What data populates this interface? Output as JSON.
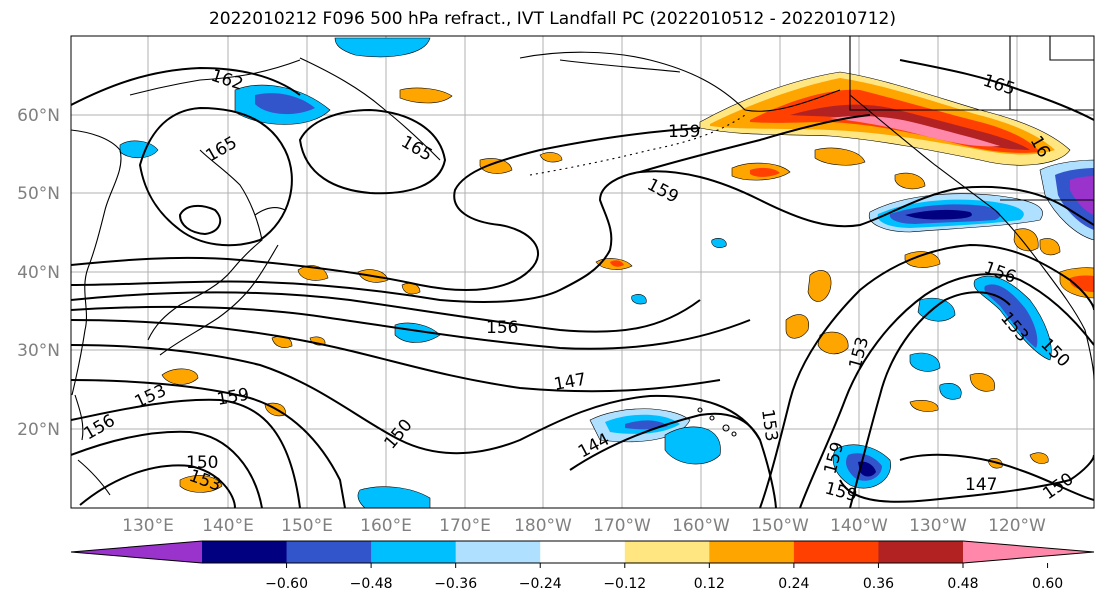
{
  "title": "2022010212 F096 500 hPa refract., IVT Landfall PC (2022010512 - 2022010712)",
  "lat_ticks": [
    "60°N",
    "50°N",
    "40°N",
    "30°N",
    "20°N"
  ],
  "lon_ticks": [
    "130°E",
    "140°E",
    "150°E",
    "160°E",
    "170°E",
    "180°W",
    "170°W",
    "160°W",
    "150°W",
    "140°W",
    "130°W",
    "120°W"
  ],
  "colorbar": {
    "colors": [
      "#9933cc",
      "#000080",
      "#3355cc",
      "#00bfff",
      "#b0e0ff",
      "#ffffff",
      "#ffe680",
      "#ffa500",
      "#ff4000",
      "#b22222",
      "#ff88aa"
    ],
    "ticks": [
      "−0.60",
      "−0.48",
      "−0.36",
      "−0.24",
      "−0.12",
      "0.12",
      "0.24",
      "0.36",
      "0.48",
      "0.60"
    ]
  },
  "contour_labels": [
    "162",
    "165",
    "165",
    "159",
    "159",
    "156",
    "165",
    "16",
    "156",
    "153",
    "147",
    "153",
    "159",
    "156",
    "153",
    "150",
    "144",
    "153",
    "159",
    "159",
    "147",
    "150",
    "150",
    "153",
    "150"
  ]
}
